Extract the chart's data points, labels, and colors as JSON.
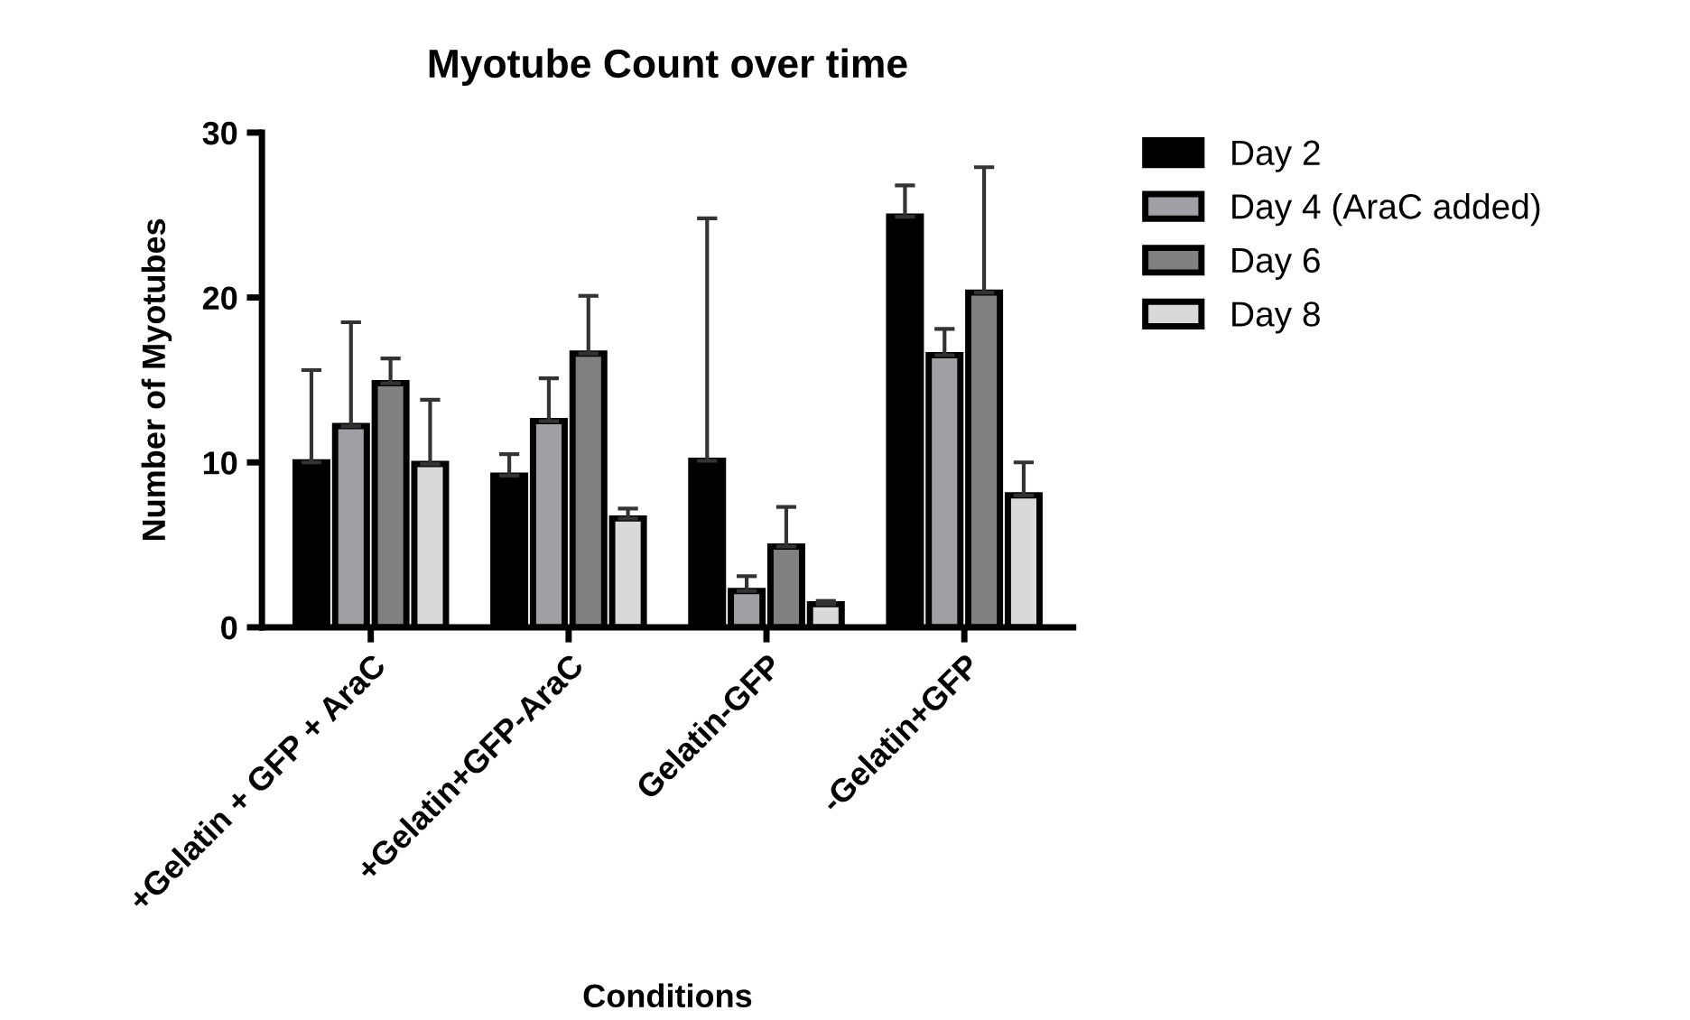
{
  "chart_data": {
    "type": "bar",
    "title": "Myotube Count over time",
    "xlabel": "Conditions",
    "ylabel": "Number of Myotubes",
    "categories": [
      "+Gelatin + GFP + AraC",
      "+Gelatin+GFP-AraC",
      "Gelatin-GFP",
      "-Gelatin+GFP"
    ],
    "series": [
      {
        "name": "Day 2",
        "color": "#000000",
        "values": [
          10,
          9.2,
          10.1,
          24.9
        ],
        "errors": [
          [
            10,
            15.6
          ],
          [
            9.2,
            10.5
          ],
          [
            10.1,
            24.8
          ],
          [
            24.9,
            26.8
          ]
        ]
      },
      {
        "name": "Day 4 (AraC added)",
        "color": "#a0a0a4",
        "values": [
          12.2,
          12.5,
          2.2,
          16.5
        ],
        "errors": [
          [
            12.2,
            18.5
          ],
          [
            12.5,
            15.1
          ],
          [
            2.2,
            3.1
          ],
          [
            16.5,
            18.1
          ]
        ]
      },
      {
        "name": "Day 6",
        "color": "#808080",
        "values": [
          14.8,
          16.6,
          4.9,
          20.3
        ],
        "errors": [
          [
            14.8,
            16.3
          ],
          [
            16.6,
            20.1
          ],
          [
            4.9,
            7.3
          ],
          [
            20.3,
            27.9
          ]
        ]
      },
      {
        "name": "Day 8",
        "color": "#d9d9d9",
        "values": [
          9.9,
          6.6,
          1.4,
          8.0
        ],
        "errors": [
          [
            9.9,
            13.8
          ],
          [
            6.6,
            7.2
          ],
          [
            1.4,
            1.6
          ],
          [
            8.0,
            10.0
          ]
        ]
      }
    ],
    "ylim": [
      0,
      30
    ],
    "yticks": [
      0,
      10,
      20,
      30
    ],
    "grid": false,
    "legend": "top right"
  }
}
